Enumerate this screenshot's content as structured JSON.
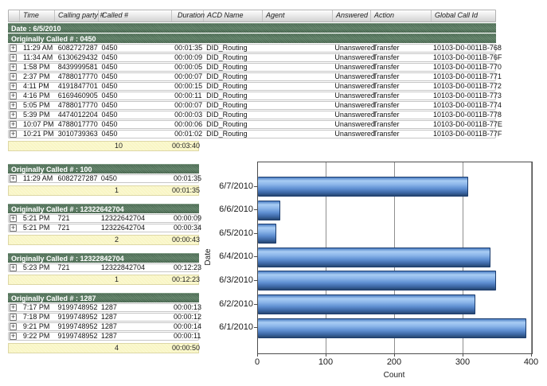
{
  "report": {
    "columns": [
      "",
      "Time",
      "Calling party #",
      "Called #",
      "Duration",
      "ACD Name",
      "Agent",
      "Answered",
      "Action",
      "Global Call Id"
    ],
    "date_band": "Date : 6/5/2010",
    "expand_icon": "+",
    "groups": [
      {
        "label": "Originally Called # : 0450",
        "full_width": true,
        "rows": [
          [
            "11:29 AM",
            "6082727287",
            "0450",
            "00:01:35",
            "DID_Routing",
            "",
            "Unanswered",
            "Transfer",
            "10103-D0-0011B-768"
          ],
          [
            "11:34 AM",
            "6130629432",
            "0450",
            "00:00:09",
            "DID_Routing",
            "",
            "Unanswered",
            "Transfer",
            "10103-D0-0011B-76F"
          ],
          [
            "1:58 PM",
            "8439999581",
            "0450",
            "00:00:05",
            "DID_Routing",
            "",
            "Unanswered",
            "Transfer",
            "10103-D0-0011B-770"
          ],
          [
            "2:37 PM",
            "4788017770",
            "0450",
            "00:00:07",
            "DID_Routing",
            "",
            "Unanswered",
            "Transfer",
            "10103-D0-0011B-771"
          ],
          [
            "4:11 PM",
            "4191847701",
            "0450",
            "00:00:15",
            "DID_Routing",
            "",
            "Unanswered",
            "Transfer",
            "10103-D0-0011B-772"
          ],
          [
            "4:16 PM",
            "6169460905",
            "0450",
            "00:00:11",
            "DID_Routing",
            "",
            "Unanswered",
            "Transfer",
            "10103-D0-0011B-773"
          ],
          [
            "5:05 PM",
            "4788017770",
            "0450",
            "00:00:07",
            "DID_Routing",
            "",
            "Unanswered",
            "Transfer",
            "10103-D0-0011B-774"
          ],
          [
            "5:39 PM",
            "4474012204",
            "0450",
            "00:00:03",
            "DID_Routing",
            "",
            "Unanswered",
            "Transfer",
            "10103-D0-0011B-778"
          ],
          [
            "10:07 PM",
            "4788017770",
            "0450",
            "00:00:06",
            "DID_Routing",
            "",
            "Unanswered",
            "Transfer",
            "10103-D0-0011B-77E"
          ],
          [
            "10:21 PM",
            "3010739363",
            "0450",
            "00:01:02",
            "DID_Routing",
            "",
            "Unanswered",
            "Transfer",
            "10103-D0-0011B-77F"
          ]
        ],
        "summary": {
          "count": "10",
          "duration": "00:03:40"
        }
      },
      {
        "label": "Originally Called # : 100",
        "full_width": false,
        "rows": [
          [
            "11:29 AM",
            "6082727287",
            "0450",
            "00:01:35"
          ]
        ],
        "summary": {
          "count": "1",
          "duration": "00:01:35"
        }
      },
      {
        "label": "Originally Called # : 12322642704",
        "full_width": false,
        "rows": [
          [
            "5:21 PM",
            "721",
            "12322642704",
            "00:00:09"
          ],
          [
            "5:21 PM",
            "721",
            "12322642704",
            "00:00:34"
          ]
        ],
        "summary": {
          "count": "2",
          "duration": "00:00:43"
        }
      },
      {
        "label": "Originally Called # : 12322842704",
        "full_width": false,
        "rows": [
          [
            "5:23 PM",
            "721",
            "12322842704",
            "00:12:23"
          ]
        ],
        "summary": {
          "count": "1",
          "duration": "00:12:23"
        }
      },
      {
        "label": "Originally Called # : 1287",
        "full_width": false,
        "rows": [
          [
            "7:17 PM",
            "9199748952",
            "1287",
            "00:00:13"
          ],
          [
            "7:18 PM",
            "9199748952",
            "1287",
            "00:00:12"
          ],
          [
            "9:21 PM",
            "9199748952",
            "1287",
            "00:00:14"
          ],
          [
            "9:22 PM",
            "9199748952",
            "1287",
            "00:00:11"
          ]
        ],
        "summary": {
          "count": "4",
          "duration": "00:00:50"
        }
      }
    ]
  },
  "chart_data": {
    "type": "bar",
    "orientation": "horizontal",
    "categories": [
      "6/7/2010",
      "6/6/2010",
      "6/5/2010",
      "6/4/2010",
      "6/3/2010",
      "6/2/2010",
      "6/1/2010"
    ],
    "values": [
      307,
      33,
      27,
      340,
      348,
      317,
      392
    ],
    "title": "",
    "xlabel": "Count",
    "ylabel": "Date",
    "xlim": [
      0,
      400
    ],
    "xticks": [
      0,
      100,
      200,
      300,
      400
    ],
    "grid": true,
    "legend": "none",
    "bar_color": "#5e8ed1"
  },
  "colors": {
    "group_band_green": "#557a5e",
    "summary_yellow": "#f9f6c5",
    "bar_blue": "#5e8ed1",
    "bar_border": "#1c3d6e",
    "grid_gray": "#8f8f8f",
    "header_gray": "#d2d2d2"
  }
}
